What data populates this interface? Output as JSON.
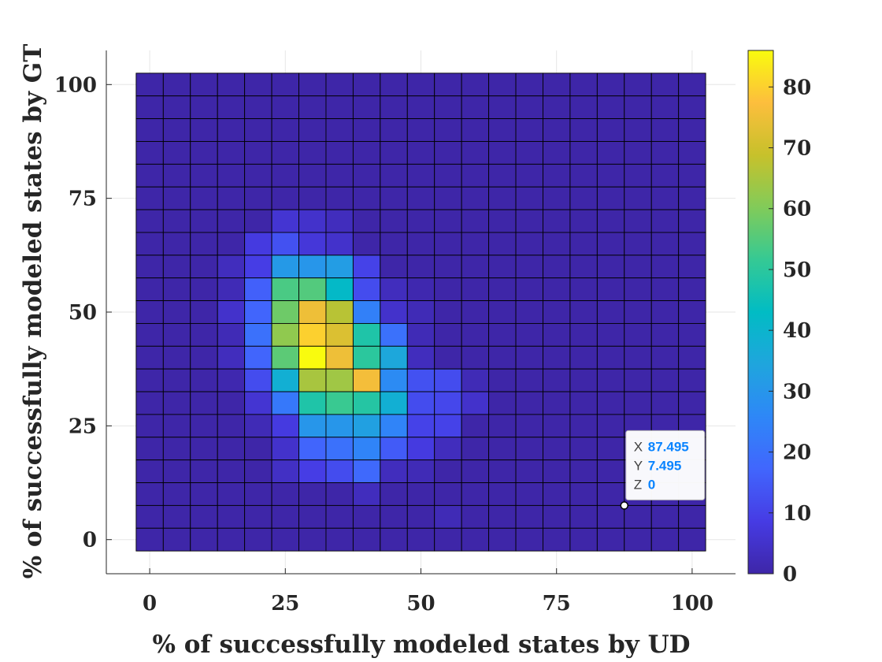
{
  "chart_data": {
    "type": "heatmap",
    "title": "",
    "xlabel": "% of successfully modeled states by UD",
    "ylabel": "% of successfully modeled states by GT",
    "x_centers_start": 0,
    "x_step": 5,
    "x_count": 21,
    "y_centers_start": 0,
    "y_step": 5,
    "y_count": 21,
    "xlim": [
      -8,
      108
    ],
    "ylim": [
      -7.5,
      107.5
    ],
    "xticks": [
      0,
      25,
      50,
      75,
      100
    ],
    "yticks": [
      0,
      25,
      50,
      75,
      100
    ],
    "grid": true,
    "colormap": "parula",
    "clim": [
      0,
      86
    ],
    "colorbar_ticks": [
      0,
      10,
      20,
      30,
      40,
      50,
      60,
      70,
      80
    ],
    "z_rows_top_to_bottom": [
      [
        0,
        0,
        0,
        0,
        0,
        0,
        0,
        0,
        0,
        0,
        0,
        0,
        0,
        0,
        0,
        0,
        0,
        0,
        0,
        0,
        0
      ],
      [
        0,
        0,
        0,
        0,
        0,
        0,
        0,
        0,
        0,
        0,
        0,
        0,
        0,
        0,
        0,
        0,
        0,
        0,
        0,
        0,
        0
      ],
      [
        0,
        0,
        0,
        0,
        0,
        0,
        0,
        0,
        0,
        0,
        0,
        0,
        0,
        0,
        0,
        0,
        0,
        0,
        0,
        0,
        0
      ],
      [
        0,
        0,
        0,
        0,
        0,
        0,
        0,
        0,
        0,
        0,
        0,
        0,
        0,
        0,
        0,
        0,
        0,
        0,
        0,
        0,
        0
      ],
      [
        0,
        0,
        0,
        0,
        0,
        0,
        0,
        0,
        0,
        0,
        0,
        0,
        0,
        0,
        0,
        0,
        0,
        0,
        0,
        0,
        0
      ],
      [
        0,
        0,
        0,
        0,
        0,
        0,
        0,
        0,
        0,
        0,
        0,
        0,
        0,
        0,
        0,
        0,
        0,
        0,
        0,
        0,
        0
      ],
      [
        0,
        0,
        0,
        0,
        0,
        6,
        5,
        3,
        0,
        0,
        0,
        0,
        0,
        0,
        0,
        0,
        0,
        0,
        0,
        0,
        0
      ],
      [
        0,
        0,
        0,
        0,
        8,
        13,
        7,
        5,
        0,
        0,
        0,
        0,
        0,
        0,
        0,
        0,
        0,
        0,
        0,
        0,
        0
      ],
      [
        0,
        0,
        0,
        3,
        9,
        31,
        30,
        32,
        10,
        0,
        0,
        0,
        0,
        0,
        0,
        0,
        0,
        0,
        0,
        0,
        0
      ],
      [
        0,
        0,
        0,
        2,
        16,
        54,
        55,
        42,
        12,
        3,
        1,
        0,
        0,
        0,
        0,
        0,
        0,
        0,
        0,
        0,
        0
      ],
      [
        0,
        0,
        0,
        5,
        17,
        58,
        75,
        67,
        24,
        5,
        2,
        0,
        0,
        0,
        0,
        0,
        0,
        0,
        0,
        0,
        0
      ],
      [
        0,
        0,
        0,
        2,
        20,
        62,
        80,
        72,
        48,
        20,
        2,
        0,
        0,
        0,
        0,
        0,
        0,
        0,
        0,
        0,
        0
      ],
      [
        0,
        0,
        0,
        3,
        17,
        56,
        86,
        75,
        50,
        35,
        3,
        0,
        0,
        0,
        0,
        0,
        0,
        0,
        0,
        0,
        0
      ],
      [
        0,
        0,
        0,
        1,
        12,
        38,
        65,
        64,
        76,
        27,
        13,
        12,
        2,
        0,
        0,
        0,
        0,
        0,
        0,
        0,
        0
      ],
      [
        0,
        0,
        0,
        0,
        6,
        22,
        48,
        52,
        49,
        38,
        12,
        11,
        5,
        0,
        0,
        0,
        0,
        0,
        0,
        0,
        0
      ],
      [
        0,
        0,
        0,
        0,
        2,
        8,
        30,
        30,
        33,
        25,
        10,
        10,
        0,
        0,
        0,
        0,
        0,
        0,
        0,
        0,
        0
      ],
      [
        0,
        0,
        0,
        0,
        0,
        5,
        17,
        20,
        25,
        15,
        8,
        3,
        0,
        0,
        0,
        0,
        0,
        0,
        0,
        0,
        0
      ],
      [
        0,
        0,
        0,
        0,
        0,
        4,
        9,
        12,
        18,
        3,
        2,
        0,
        0,
        0,
        0,
        0,
        0,
        0,
        0,
        0,
        0
      ],
      [
        0,
        0,
        0,
        0,
        0,
        0,
        0,
        0,
        3,
        0,
        0,
        0,
        0,
        0,
        0,
        0,
        0,
        0,
        0,
        0,
        0
      ],
      [
        0,
        0,
        0,
        0,
        0,
        0,
        0,
        0,
        0,
        0,
        0,
        2,
        0,
        0,
        0,
        0,
        0,
        0,
        0,
        0,
        0
      ],
      [
        0,
        0,
        0,
        0,
        0,
        0,
        0,
        0,
        0,
        0,
        0,
        0,
        0,
        0,
        0,
        0,
        0,
        0,
        0,
        0,
        0
      ]
    ],
    "datatip": {
      "x_label": "X",
      "x_value": "87.495",
      "y_label": "Y",
      "y_value": "7.495",
      "z_label": "Z",
      "z_value": "0",
      "anchor_x": 87.495,
      "anchor_y": 7.495
    }
  }
}
